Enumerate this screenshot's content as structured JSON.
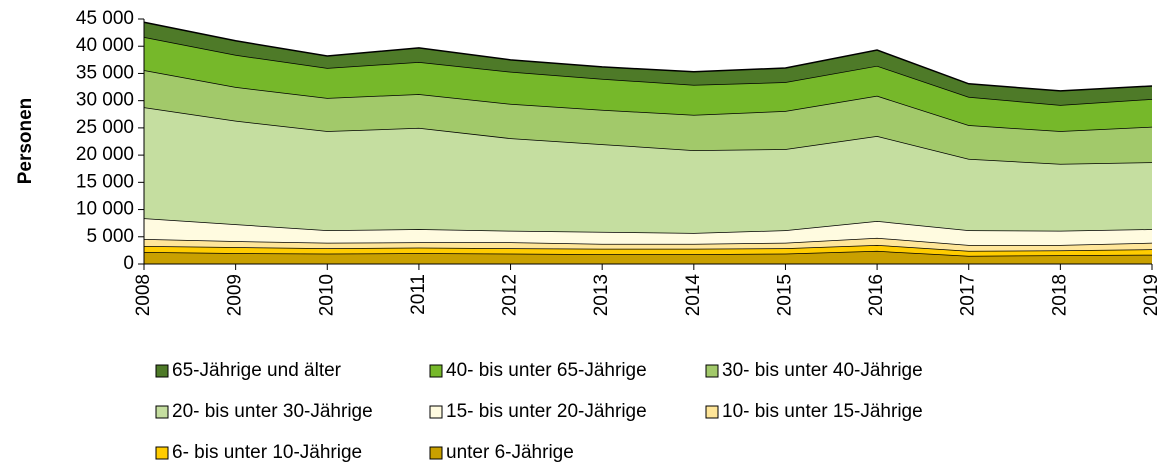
{
  "chart_data": {
    "type": "stacked_area",
    "y_label": "Personen",
    "categories": [
      "2008",
      "2009",
      "2010",
      "2011",
      "2012",
      "2013",
      "2014",
      "2015",
      "2016",
      "2017",
      "2018",
      "2019"
    ],
    "series": [
      {
        "name": "unter 6-Jährige",
        "color": "#c9a000",
        "values": [
          2200,
          2000,
          1900,
          2000,
          1900,
          1800,
          1800,
          1900,
          2400,
          1500,
          1600,
          1700
        ]
      },
      {
        "name": "6- bis unter 10-Jährige",
        "color": "#ffcc00",
        "values": [
          1100,
          1100,
          1000,
          1000,
          1000,
          1000,
          1000,
          1000,
          1100,
          900,
          900,
          1000
        ]
      },
      {
        "name": "10- bis unter 15-Jährige",
        "color": "#ffe699",
        "values": [
          1300,
          1100,
          1000,
          1000,
          1100,
          900,
          900,
          1000,
          1300,
          1100,
          1000,
          1200
        ]
      },
      {
        "name": "15- bis unter 20-Jährige",
        "color": "#fffbe0",
        "values": [
          3800,
          3100,
          2300,
          2400,
          2100,
          2200,
          2000,
          2300,
          3100,
          2700,
          2600,
          2500
        ]
      },
      {
        "name": "20- bis unter 30-Jährige",
        "color": "#c5dea0",
        "values": [
          20400,
          19000,
          18200,
          18600,
          17000,
          16100,
          15200,
          14900,
          15600,
          13100,
          12300,
          12300
        ]
      },
      {
        "name": "30- bis unter 40-Jährige",
        "color": "#a2c96a",
        "values": [
          6800,
          6200,
          6100,
          6200,
          6300,
          6300,
          6500,
          7000,
          7400,
          6200,
          6000,
          6500
        ]
      },
      {
        "name": "40- bis unter 65-Jährige",
        "color": "#76b82a",
        "values": [
          6100,
          5900,
          5500,
          5900,
          5900,
          5700,
          5500,
          5300,
          5500,
          5200,
          4800,
          5100
        ]
      },
      {
        "name": "65-Jährige und älter",
        "color": "#4e7a28",
        "values": [
          2700,
          2600,
          2200,
          2600,
          2200,
          2200,
          2400,
          2600,
          2900,
          2400,
          2600,
          2400
        ]
      }
    ],
    "ylim": [
      0,
      45000
    ],
    "yticks": [
      0,
      {
        "value": 5000,
        "label": "5 000"
      },
      {
        "value": 10000,
        "label": "10 000"
      },
      {
        "value": 15000,
        "label": "15 000"
      },
      {
        "value": 20000,
        "label": "20 000"
      },
      {
        "value": 25000,
        "label": "25 000"
      },
      {
        "value": 30000,
        "label": "30 000"
      },
      {
        "value": 35000,
        "label": "35 000"
      },
      {
        "value": 40000,
        "label": "40 000"
      },
      {
        "value": 45000,
        "label": "45 000"
      }
    ]
  }
}
